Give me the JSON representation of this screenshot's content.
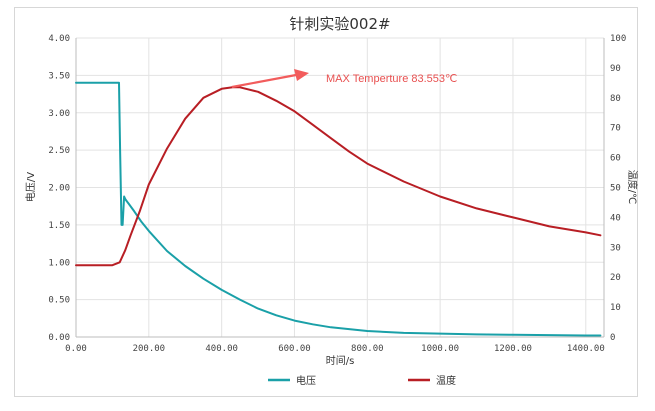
{
  "chart_data": {
    "type": "line",
    "title": "针刺实验002#",
    "xlabel": "时间/s",
    "ylabel_left": "电压/V",
    "ylabel_right": "温度/℃",
    "xlim": [
      0,
      1450
    ],
    "ylim_left": [
      0,
      4
    ],
    "ylim_right": [
      0,
      100
    ],
    "x_ticks": [
      "0.00",
      "200.00",
      "400.00",
      "600.00",
      "800.00",
      "1000.00",
      "1200.00",
      "1400.00"
    ],
    "y_left_ticks": [
      "0.00",
      "0.50",
      "1.00",
      "1.50",
      "2.00",
      "2.50",
      "3.00",
      "3.50",
      "4.00"
    ],
    "y_right_ticks": [
      "0",
      "10",
      "20",
      "30",
      "40",
      "50",
      "60",
      "70",
      "80",
      "90",
      "100"
    ],
    "grid": true,
    "legend_position": "bottom",
    "series": [
      {
        "name": "电压",
        "axis": "left",
        "color": "#1aa0a8",
        "x": [
          0,
          50,
          100,
          118,
          121,
          125,
          128,
          132,
          136,
          145,
          160,
          180,
          200,
          250,
          300,
          350,
          400,
          450,
          500,
          550,
          600,
          650,
          700,
          800,
          900,
          1000,
          1100,
          1200,
          1300,
          1400,
          1440
        ],
        "y": [
          3.4,
          3.4,
          3.4,
          3.4,
          2.5,
          1.5,
          1.5,
          1.88,
          1.84,
          1.78,
          1.68,
          1.54,
          1.42,
          1.15,
          0.95,
          0.78,
          0.63,
          0.5,
          0.38,
          0.29,
          0.22,
          0.17,
          0.13,
          0.08,
          0.055,
          0.045,
          0.035,
          0.03,
          0.025,
          0.02,
          0.02
        ]
      },
      {
        "name": "温度",
        "axis": "right",
        "color": "#b81e24",
        "x": [
          0,
          50,
          100,
          120,
          135,
          150,
          175,
          200,
          250,
          300,
          350,
          400,
          430,
          450,
          500,
          550,
          600,
          650,
          700,
          750,
          800,
          900,
          1000,
          1100,
          1200,
          1300,
          1400,
          1440
        ],
        "y": [
          24,
          24,
          24,
          25,
          29,
          34,
          42,
          51,
          63,
          73,
          80,
          83,
          83.55,
          83.5,
          82,
          79,
          75.5,
          71,
          66.5,
          62,
          58,
          52,
          47,
          43,
          40,
          37,
          35,
          34
        ]
      }
    ],
    "annotation": {
      "text": "MAX Temperture 83.553℃",
      "x": 430,
      "y": 83.553
    }
  },
  "colors": {
    "annotation_arrow": "#f25c5c",
    "grid": "#e3e3e3",
    "axis": "#bdbdbd"
  }
}
